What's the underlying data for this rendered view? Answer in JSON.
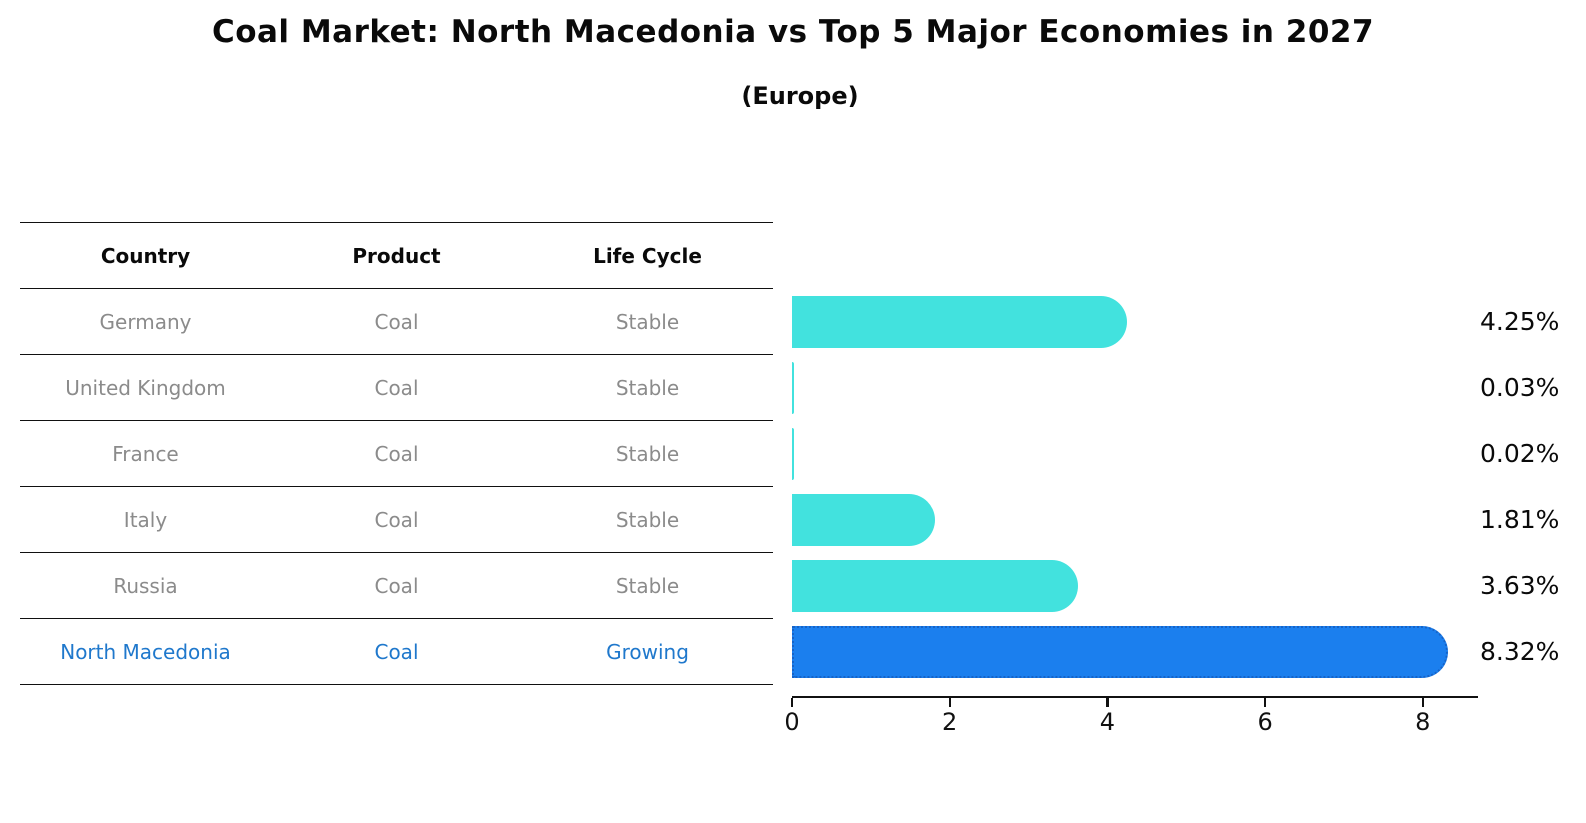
{
  "title": "Coal Market: North Macedonia vs Top 5 Major Economies in 2027",
  "subtitle": "(Europe)",
  "table": {
    "headers": [
      "Country",
      "Product",
      "Life Cycle"
    ],
    "rows": [
      {
        "country": "Germany",
        "product": "Coal",
        "life_cycle": "Stable",
        "highlighted": false
      },
      {
        "country": "United Kingdom",
        "product": "Coal",
        "life_cycle": "Stable",
        "highlighted": false
      },
      {
        "country": "France",
        "product": "Coal",
        "life_cycle": "Stable",
        "highlighted": false
      },
      {
        "country": "Italy",
        "product": "Coal",
        "life_cycle": "Stable",
        "highlighted": false
      },
      {
        "country": "Russia",
        "product": "Coal",
        "life_cycle": "Stable",
        "highlighted": false
      },
      {
        "country": "North Macedonia",
        "product": "Coal",
        "life_cycle": "Growing",
        "highlighted": true
      }
    ]
  },
  "chart_data": {
    "type": "bar",
    "orientation": "horizontal",
    "title": "Coal Market: North Macedonia vs Top 5 Major Economies in 2027 (Europe)",
    "categories": [
      "Germany",
      "United Kingdom",
      "France",
      "Italy",
      "Russia",
      "North Macedonia"
    ],
    "values": [
      4.25,
      0.03,
      0.02,
      1.81,
      3.63,
      8.32
    ],
    "value_labels": [
      "4.25%",
      "0.03%",
      "0.02%",
      "1.81%",
      "3.63%",
      "8.32%"
    ],
    "xlabel": "",
    "ylabel": "",
    "xlim": [
      0,
      8.7
    ],
    "x_ticks": [
      0,
      2,
      4,
      6,
      8
    ],
    "grid": false,
    "legend": "none",
    "bar_color": "#42e2de",
    "highlight_bar_color": "#1b7fee",
    "highlight_border_color": "#1663c7",
    "highlight_index": 5
  },
  "colors": {
    "row_text": "#8b8b8b",
    "highlight_text": "#1f78cc",
    "header_text": "#0a0a0a",
    "axis": "#111111",
    "background": "#ffffff"
  }
}
